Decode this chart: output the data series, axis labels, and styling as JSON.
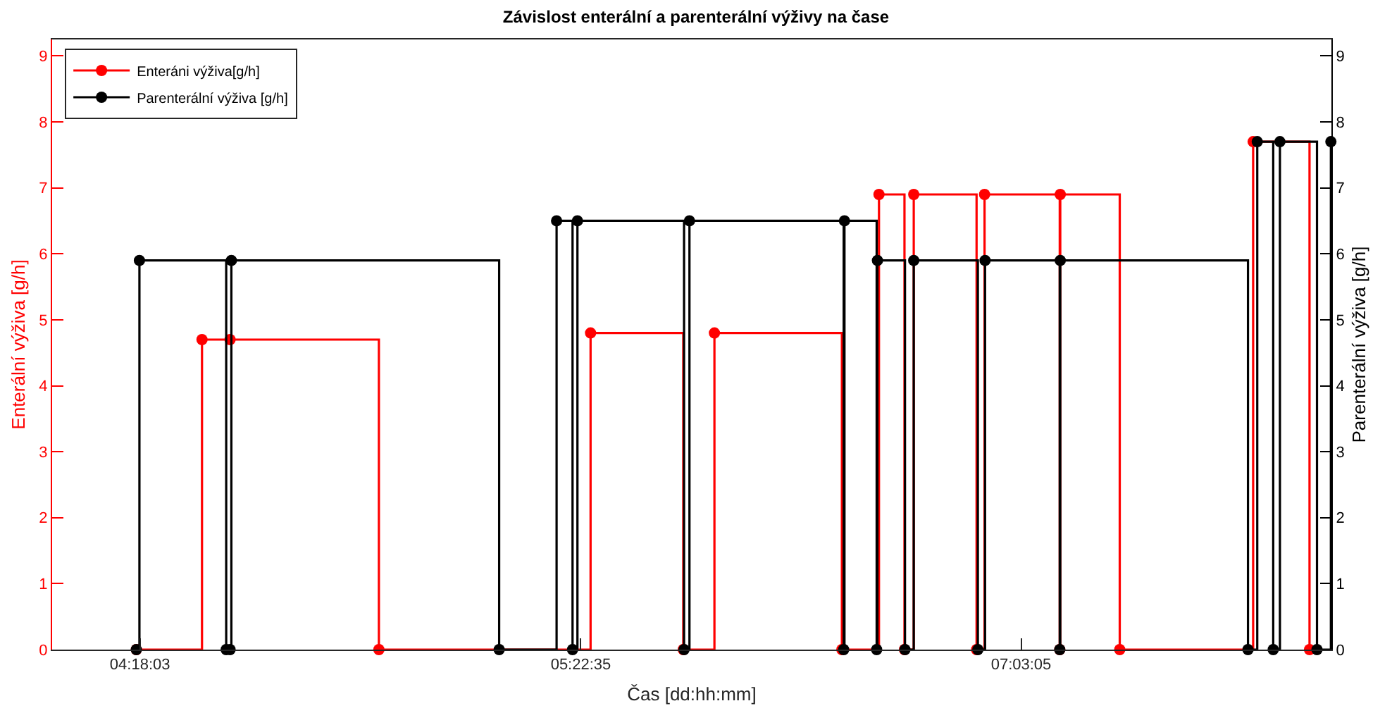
{
  "chart_data": {
    "type": "step",
    "title": "Závislost enterální a parenterální výživy na čase",
    "xlabel": "Čas [dd:hh:mm]",
    "ylabel": "Enterální výživa [g/h]",
    "y2label": "Parenterální výživa [g/h]",
    "xlim": [
      "--01-04T12:22",
      "--01-07T23:10"
    ],
    "xticks": [
      {
        "value": "--01-04T18:03",
        "label": "04:18:03"
      },
      {
        "value": "--01-05T22:35",
        "label": "05:22:35"
      },
      {
        "value": "--01-07T03:05",
        "label": "07:03:05"
      }
    ],
    "ylim": [
      0,
      9.25
    ],
    "yticks": [
      0,
      1,
      2,
      3,
      4,
      5,
      6,
      7,
      8,
      9
    ],
    "y2lim": [
      0,
      9.25
    ],
    "y2ticks": [
      0,
      1,
      2,
      3,
      4,
      5,
      6,
      7,
      8,
      9
    ],
    "marker": "circle",
    "line_style": "solid",
    "legend": "top left",
    "series": [
      {
        "name": "Enteráni výživa[g/h]",
        "color": "#ff0000",
        "x": [
          "--01-04T17:49",
          "--01-04T22:04",
          "--01-04T23:53",
          "--01-05T09:31",
          "--01-05T23:13",
          "--01-06T05:13",
          "--01-06T07:14",
          "--01-06T15:29",
          "--01-06T17:53",
          "--01-06T19:32",
          "--01-06T20:08",
          "--01-07T00:12",
          "--01-07T00:43",
          "--01-07T05:35",
          "--01-07T05:37",
          "--01-07T09:28",
          "--01-07T18:06",
          "--01-07T21:45"
        ],
        "values": [
          0,
          4.7,
          4.7,
          0,
          4.8,
          0,
          4.8,
          0,
          6.9,
          0,
          6.9,
          0,
          6.9,
          0,
          6.9,
          0,
          7.7,
          0
        ]
      },
      {
        "name": "Parenterální výživa [g/h]",
        "color": "#000000",
        "axis": "y2",
        "x": [
          "--01-04T17:49",
          "--01-04T18:01",
          "--01-04T23:38",
          "--01-04T23:53",
          "--01-04T23:58",
          "--01-05T17:18",
          "--01-05T21:01",
          "--01-05T22:03",
          "--01-05T22:22",
          "--01-06T05:16",
          "--01-06T05:37",
          "--01-06T15:36",
          "--01-06T15:39",
          "--01-06T17:44",
          "--01-06T17:47",
          "--01-06T19:34",
          "--01-06T20:08",
          "--01-07T00:17",
          "--01-07T00:45",
          "--01-07T05:35",
          "--01-07T05:37",
          "--01-07T17:46",
          "--01-07T18:22",
          "--01-07T19:24",
          "--01-07T19:50",
          "--01-07T22:14",
          "--01-07T23:08"
        ],
        "values": [
          0,
          5.9,
          0,
          0,
          5.9,
          0,
          6.5,
          0,
          6.5,
          0,
          6.5,
          0,
          6.5,
          0,
          5.9,
          0,
          5.9,
          0,
          5.9,
          0,
          5.9,
          0,
          7.7,
          0,
          7.7,
          0,
          7.7
        ]
      }
    ]
  }
}
